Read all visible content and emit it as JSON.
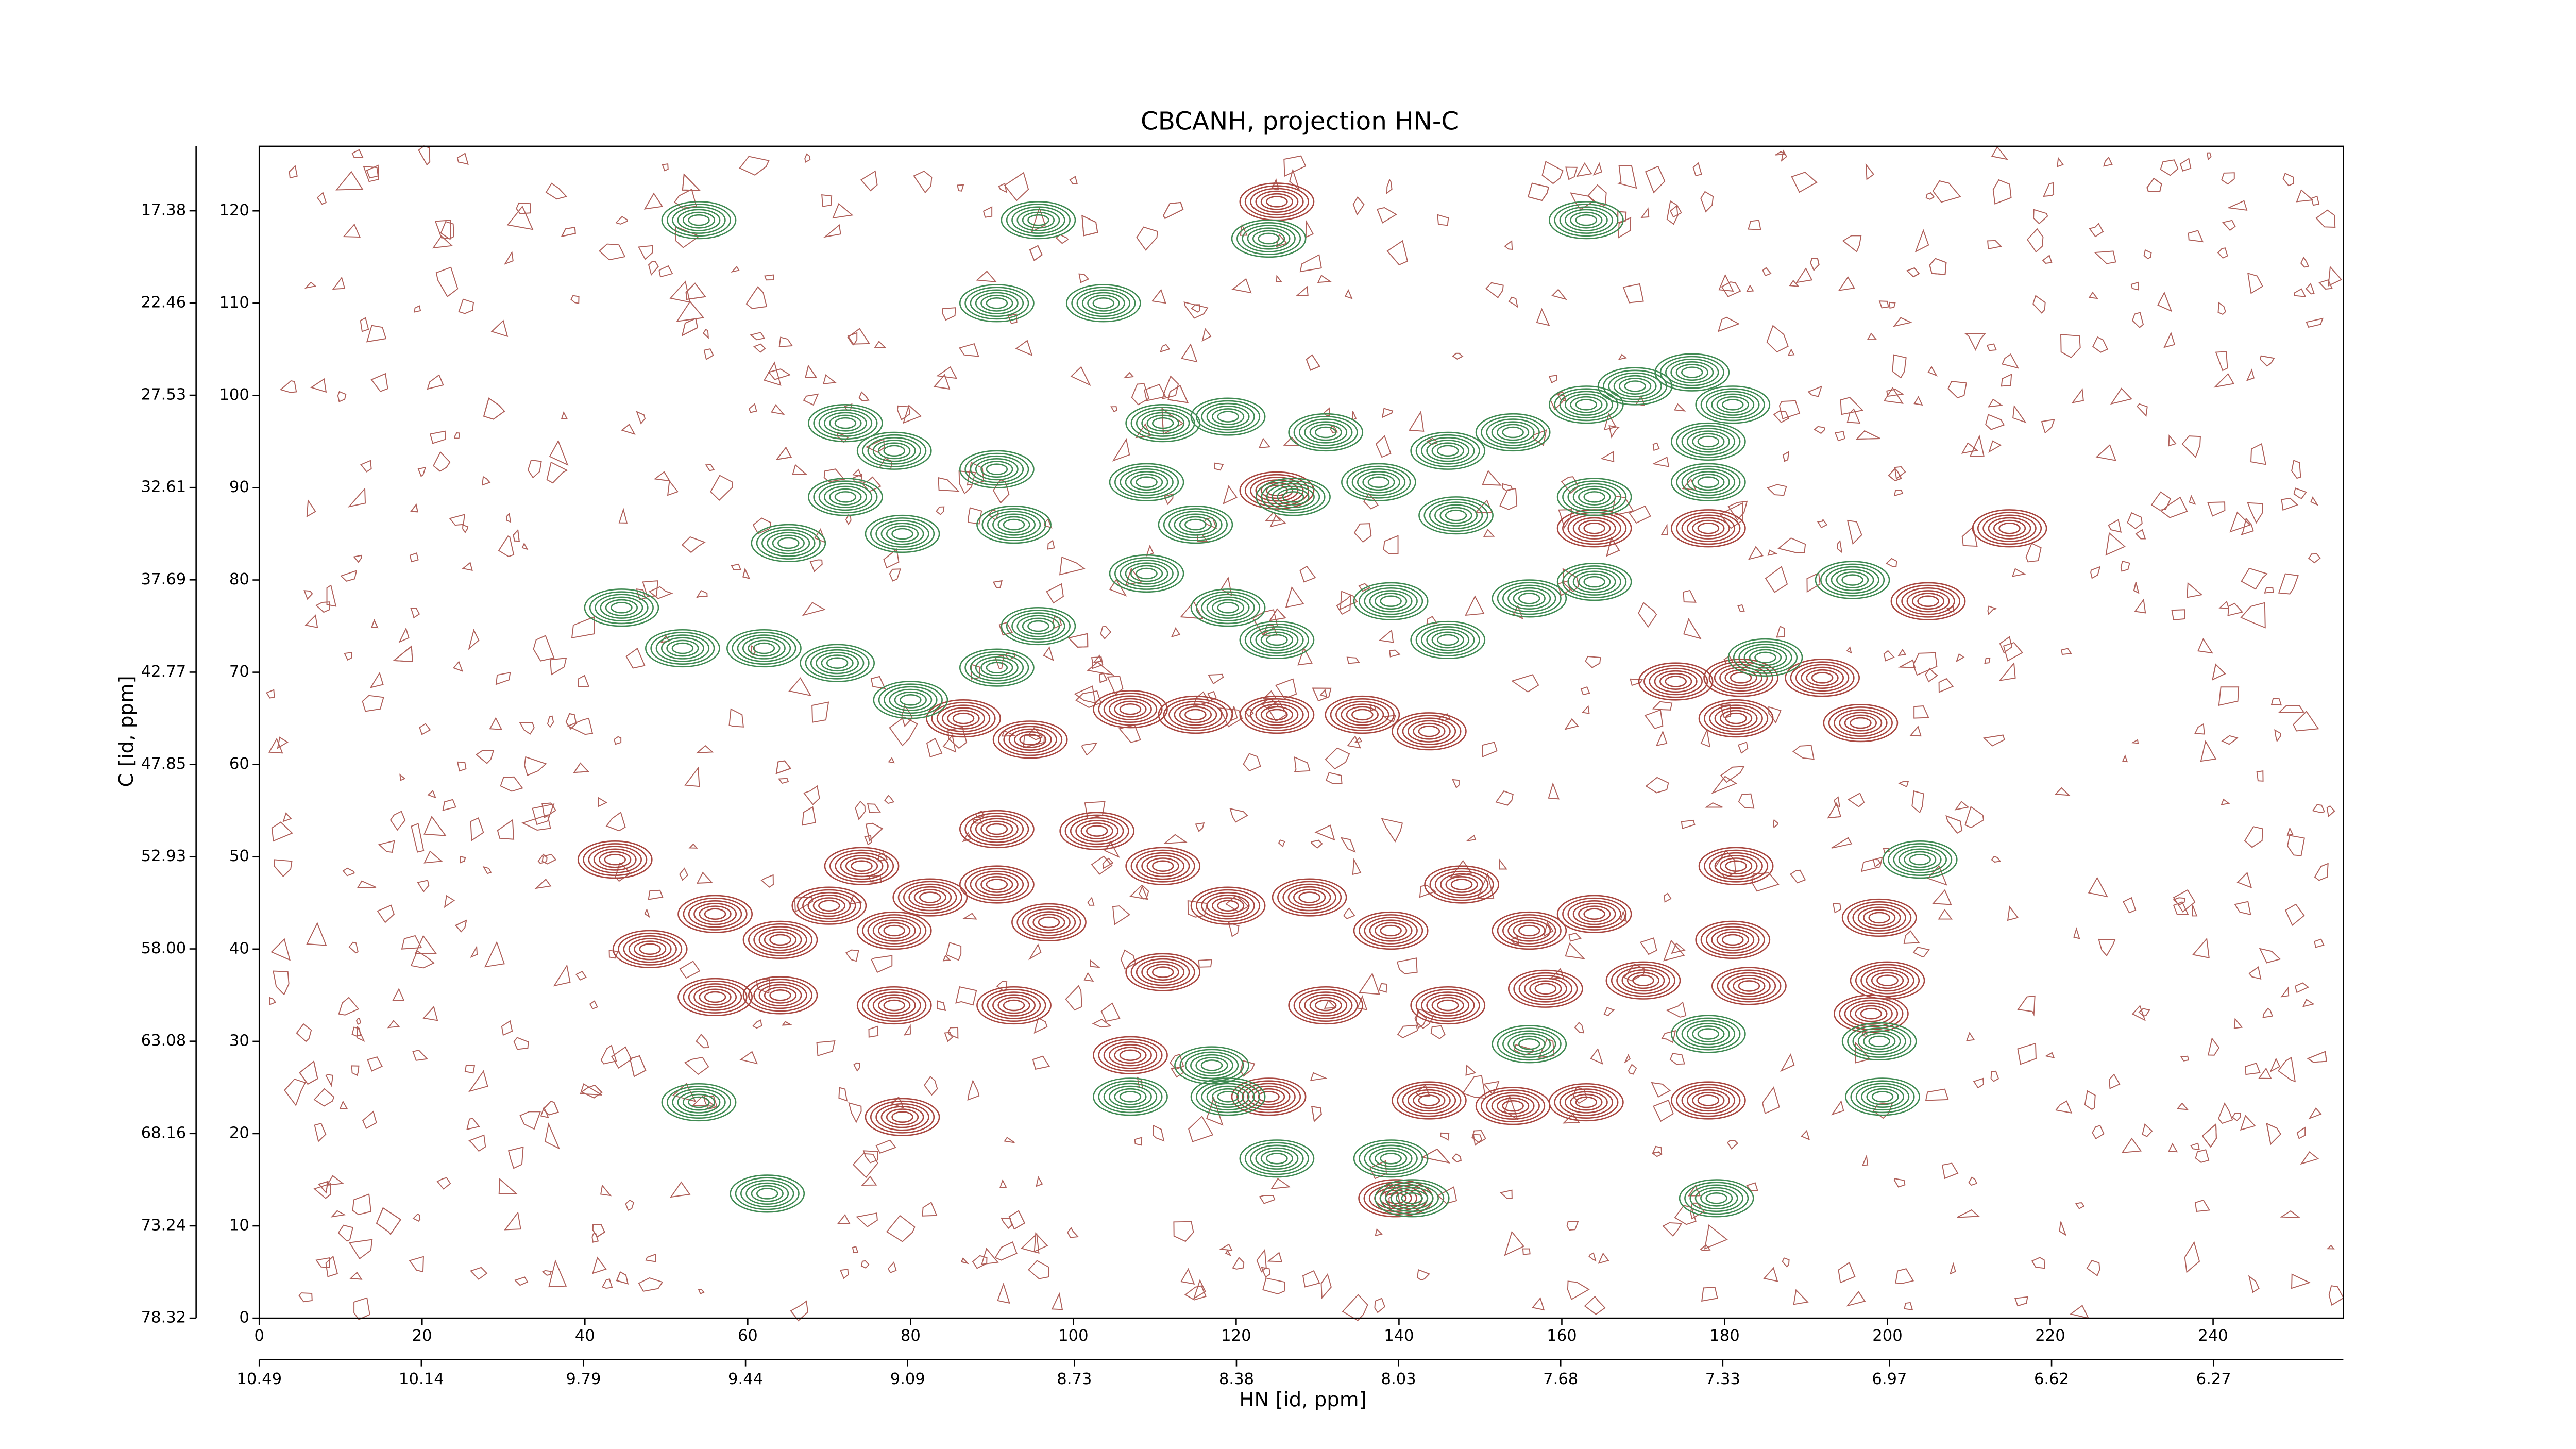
{
  "chart_data": {
    "type": "contour",
    "title": "CBCANH, projection HN-C",
    "xlabel": "HN [id, ppm]",
    "ylabel": "C [id, ppm]",
    "xlim": [
      0,
      256
    ],
    "ylim": [
      0,
      127
    ],
    "xticks": [
      0,
      20,
      40,
      60,
      80,
      100,
      120,
      140,
      160,
      180,
      200,
      220,
      240
    ],
    "yticks": [
      0,
      10,
      20,
      30,
      40,
      50,
      60,
      70,
      80,
      90,
      100,
      110,
      120
    ],
    "x2lim": [
      10.49,
      5.99
    ],
    "x2ticks": [
      10.49,
      10.14,
      9.79,
      9.44,
      9.09,
      8.73,
      8.38,
      8.03,
      7.68,
      7.33,
      6.97,
      6.62,
      6.27
    ],
    "y2lim": [
      78.32,
      13.83
    ],
    "y2ticks": [
      17.38,
      22.46,
      27.53,
      32.61,
      37.69,
      42.77,
      47.85,
      52.93,
      {
        "value": 58,
        "label": "58.00"
      },
      63.08,
      68.16,
      73.24,
      78.32
    ],
    "series": [
      {
        "color": "#a8463f",
        "x": [
          125,
          86.5,
          94.7,
          107,
          115,
          125,
          135.5,
          143.7,
          174,
          182,
          192,
          196.7,
          181.4,
          43.7,
          56,
          64,
          70,
          78,
          74,
          82.4,
          90.6,
          97,
          102.9,
          111,
          119,
          129,
          139,
          147.7,
          156,
          164,
          181,
          181.4,
          199,
          200,
          198,
          183,
          170,
          158,
          146,
          131,
          111,
          92.7,
          78,
          64,
          56,
          48,
          90.6,
          107,
          143.7,
          154,
          163,
          178,
          79,
          124,
          215,
          205,
          178,
          164,
          125,
          139.6
        ],
        "y": [
          121,
          65,
          62.7,
          66,
          65.4,
          65.4,
          65.4,
          63.6,
          69,
          69.4,
          69.4,
          64.5,
          65,
          49.7,
          43.8,
          41,
          44.7,
          42,
          49,
          45.6,
          47,
          42.9,
          52.8,
          49,
          44.7,
          45.6,
          42,
          47,
          42,
          43.8,
          41,
          49,
          43.4,
          36.6,
          33,
          36,
          36.6,
          35.7,
          33.9,
          33.9,
          37.5,
          33.9,
          33.9,
          35,
          34.8,
          40,
          53,
          28.5,
          23.6,
          23,
          23.4,
          23.6,
          21.8,
          24,
          85.6,
          77.7,
          85.6,
          85.6,
          89.7,
          13
        ]
      },
      {
        "color": "#3f8a52",
        "x": [
          54,
          95.7,
          124,
          163,
          90.6,
          103.7,
          176,
          181,
          169,
          163,
          154,
          146,
          131,
          119,
          111,
          72,
          78,
          90.6,
          72,
          79,
          65,
          92.7,
          109,
          115,
          127,
          137.5,
          147,
          164,
          178,
          178,
          109,
          119,
          125,
          139,
          146,
          156,
          164,
          195.7,
          44.5,
          52,
          71,
          90.6,
          80,
          95.7,
          185,
          62,
          204,
          156,
          178,
          199,
          199.4,
          107,
          119,
          54,
          62.4,
          125,
          139,
          179,
          117,
          141.6
        ],
        "y": [
          119,
          119,
          117,
          119,
          110,
          110,
          102.5,
          99,
          101,
          99,
          96,
          94,
          96,
          97.7,
          97,
          97,
          94,
          92,
          89,
          85,
          84,
          86,
          90.6,
          86,
          89,
          90.6,
          87,
          89,
          95,
          90.6,
          80.7,
          77,
          73.5,
          77.7,
          73.5,
          78,
          79.8,
          80,
          77,
          72.6,
          71,
          70.5,
          67,
          75,
          71.6,
          72.6,
          49.7,
          29.7,
          30.8,
          30,
          24,
          24,
          24,
          23.4,
          13.5,
          17.3,
          17.3,
          13,
          27.4,
          13
        ]
      }
    ]
  }
}
